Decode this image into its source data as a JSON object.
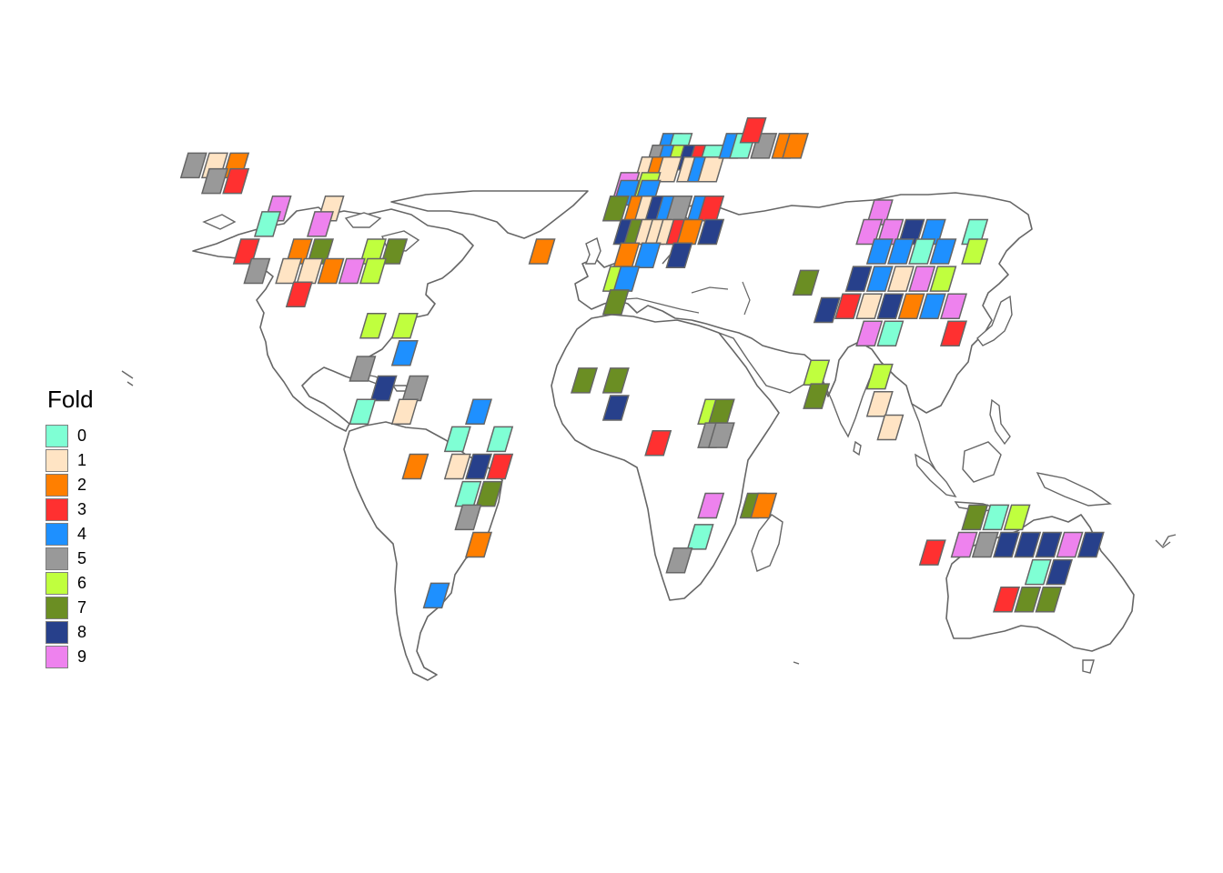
{
  "legend": {
    "title": "Fold",
    "items": [
      {
        "label": "0",
        "color": "#7fffd4"
      },
      {
        "label": "1",
        "color": "#ffe4c4"
      },
      {
        "label": "2",
        "color": "#ff7f00"
      },
      {
        "label": "3",
        "color": "#ff3030"
      },
      {
        "label": "4",
        "color": "#1e90ff"
      },
      {
        "label": "5",
        "color": "#999999"
      },
      {
        "label": "6",
        "color": "#c0ff3e"
      },
      {
        "label": "7",
        "color": "#6b8e23"
      },
      {
        "label": "8",
        "color": "#27408b"
      },
      {
        "label": "9",
        "color": "#ee82ee"
      }
    ]
  },
  "map": {
    "land_fill": "#ffffff",
    "coast_color": "#666666",
    "cell_border_color": "#666666",
    "cells": [
      {
        "lon": -168,
        "lat": 67,
        "fold": 5
      },
      {
        "lon": -160,
        "lat": 67,
        "fold": 1
      },
      {
        "lon": -152,
        "lat": 67,
        "fold": 2
      },
      {
        "lon": -160,
        "lat": 63,
        "fold": 5
      },
      {
        "lon": -152,
        "lat": 63,
        "fold": 3
      },
      {
        "lon": -136,
        "lat": 56,
        "fold": 9
      },
      {
        "lon": -140,
        "lat": 52,
        "fold": 0
      },
      {
        "lon": -116,
        "lat": 56,
        "fold": 1
      },
      {
        "lon": -120,
        "lat": 52,
        "fold": 9
      },
      {
        "lon": -148,
        "lat": 45,
        "fold": 3
      },
      {
        "lon": -128,
        "lat": 45,
        "fold": 2
      },
      {
        "lon": -120,
        "lat": 45,
        "fold": 7
      },
      {
        "lon": -100,
        "lat": 45,
        "fold": 6
      },
      {
        "lon": -92,
        "lat": 45,
        "fold": 7
      },
      {
        "lon": -144,
        "lat": 40,
        "fold": 5
      },
      {
        "lon": -132,
        "lat": 40,
        "fold": 1
      },
      {
        "lon": -124,
        "lat": 40,
        "fold": 1
      },
      {
        "lon": -116,
        "lat": 40,
        "fold": 2
      },
      {
        "lon": -108,
        "lat": 40,
        "fold": 9
      },
      {
        "lon": -100,
        "lat": 40,
        "fold": 6
      },
      {
        "lon": -128,
        "lat": 34,
        "fold": 3
      },
      {
        "lon": -100,
        "lat": 26,
        "fold": 6
      },
      {
        "lon": -88,
        "lat": 26,
        "fold": 6
      },
      {
        "lon": -88,
        "lat": 19,
        "fold": 4
      },
      {
        "lon": -104,
        "lat": 15,
        "fold": 5
      },
      {
        "lon": -96,
        "lat": 10,
        "fold": 8
      },
      {
        "lon": -84,
        "lat": 10,
        "fold": 5
      },
      {
        "lon": -104,
        "lat": 4,
        "fold": 0
      },
      {
        "lon": -88,
        "lat": 4,
        "fold": 1
      },
      {
        "lon": -60,
        "lat": 4,
        "fold": 4
      },
      {
        "lon": -68,
        "lat": -3,
        "fold": 0
      },
      {
        "lon": -52,
        "lat": -3,
        "fold": 0
      },
      {
        "lon": -68,
        "lat": -10,
        "fold": 1
      },
      {
        "lon": -60,
        "lat": -10,
        "fold": 8
      },
      {
        "lon": -52,
        "lat": -10,
        "fold": 3
      },
      {
        "lon": -84,
        "lat": -10,
        "fold": 2
      },
      {
        "lon": -64,
        "lat": -17,
        "fold": 0
      },
      {
        "lon": -56,
        "lat": -17,
        "fold": 7
      },
      {
        "lon": -64,
        "lat": -23,
        "fold": 5
      },
      {
        "lon": -60,
        "lat": -30,
        "fold": 2
      },
      {
        "lon": -76,
        "lat": -43,
        "fold": 4
      },
      {
        "lon": -36,
        "lat": 45,
        "fold": 2
      },
      {
        "lon": 12,
        "lat": 72,
        "fold": 4
      },
      {
        "lon": 16,
        "lat": 72,
        "fold": 0
      },
      {
        "lon": 8,
        "lat": 69,
        "fold": 5
      },
      {
        "lon": 12,
        "lat": 69,
        "fold": 4
      },
      {
        "lon": 16,
        "lat": 69,
        "fold": 6
      },
      {
        "lon": 20,
        "lat": 69,
        "fold": 8
      },
      {
        "lon": 24,
        "lat": 69,
        "fold": 3
      },
      {
        "lon": 28,
        "lat": 69,
        "fold": 0
      },
      {
        "lon": 4,
        "lat": 66,
        "fold": 1
      },
      {
        "lon": 8,
        "lat": 66,
        "fold": 2
      },
      {
        "lon": 12,
        "lat": 66,
        "fold": 1
      },
      {
        "lon": 20,
        "lat": 66,
        "fold": 1
      },
      {
        "lon": 24,
        "lat": 66,
        "fold": 4
      },
      {
        "lon": 28,
        "lat": 66,
        "fold": 1
      },
      {
        "lon": -4,
        "lat": 62,
        "fold": 9
      },
      {
        "lon": 4,
        "lat": 62,
        "fold": 6
      },
      {
        "lon": -4,
        "lat": 60,
        "fold": 4
      },
      {
        "lon": 4,
        "lat": 60,
        "fold": 4
      },
      {
        "lon": -8,
        "lat": 56,
        "fold": 7
      },
      {
        "lon": 0,
        "lat": 56,
        "fold": 2
      },
      {
        "lon": 4,
        "lat": 56,
        "fold": 1
      },
      {
        "lon": 8,
        "lat": 56,
        "fold": 8
      },
      {
        "lon": 12,
        "lat": 56,
        "fold": 4
      },
      {
        "lon": 16,
        "lat": 56,
        "fold": 5
      },
      {
        "lon": 24,
        "lat": 56,
        "fold": 4
      },
      {
        "lon": 28,
        "lat": 56,
        "fold": 3
      },
      {
        "lon": -4,
        "lat": 50,
        "fold": 8
      },
      {
        "lon": 0,
        "lat": 50,
        "fold": 7
      },
      {
        "lon": 4,
        "lat": 50,
        "fold": 1
      },
      {
        "lon": 8,
        "lat": 50,
        "fold": 1
      },
      {
        "lon": 12,
        "lat": 50,
        "fold": 1
      },
      {
        "lon": 16,
        "lat": 50,
        "fold": 3
      },
      {
        "lon": 20,
        "lat": 50,
        "fold": 2
      },
      {
        "lon": 28,
        "lat": 50,
        "fold": 8
      },
      {
        "lon": -4,
        "lat": 44,
        "fold": 2
      },
      {
        "lon": 4,
        "lat": 44,
        "fold": 4
      },
      {
        "lon": 16,
        "lat": 44,
        "fold": 8
      },
      {
        "lon": -8,
        "lat": 38,
        "fold": 6
      },
      {
        "lon": -4,
        "lat": 38,
        "fold": 4
      },
      {
        "lon": -8,
        "lat": 32,
        "fold": 7
      },
      {
        "lon": 36,
        "lat": 72,
        "fold": 4
      },
      {
        "lon": 40,
        "lat": 72,
        "fold": 0
      },
      {
        "lon": 48,
        "lat": 72,
        "fold": 5
      },
      {
        "lon": 44,
        "lat": 76,
        "fold": 3
      },
      {
        "lon": 56,
        "lat": 72,
        "fold": 2
      },
      {
        "lon": 60,
        "lat": 72,
        "fold": 2
      },
      {
        "lon": -20,
        "lat": 12,
        "fold": 7
      },
      {
        "lon": -8,
        "lat": 12,
        "fold": 7
      },
      {
        "lon": -8,
        "lat": 5,
        "fold": 8
      },
      {
        "lon": 8,
        "lat": -4,
        "fold": 3
      },
      {
        "lon": 28,
        "lat": 4,
        "fold": 6
      },
      {
        "lon": 32,
        "lat": 4,
        "fold": 7
      },
      {
        "lon": 28,
        "lat": -2,
        "fold": 5
      },
      {
        "lon": 32,
        "lat": -2,
        "fold": 5
      },
      {
        "lon": 28,
        "lat": -20,
        "fold": 9
      },
      {
        "lon": 24,
        "lat": -28,
        "fold": 0
      },
      {
        "lon": 16,
        "lat": -34,
        "fold": 5
      },
      {
        "lon": 44,
        "lat": -20,
        "fold": 7
      },
      {
        "lon": 48,
        "lat": -20,
        "fold": 2
      },
      {
        "lon": 64,
        "lat": 37,
        "fold": 7
      },
      {
        "lon": 72,
        "lat": 30,
        "fold": 8
      },
      {
        "lon": 68,
        "lat": 14,
        "fold": 6
      },
      {
        "lon": 68,
        "lat": 8,
        "fold": 7
      },
      {
        "lon": 92,
        "lat": 55,
        "fold": 9
      },
      {
        "lon": 88,
        "lat": 50,
        "fold": 9
      },
      {
        "lon": 96,
        "lat": 50,
        "fold": 9
      },
      {
        "lon": 104,
        "lat": 50,
        "fold": 8
      },
      {
        "lon": 112,
        "lat": 50,
        "fold": 4
      },
      {
        "lon": 128,
        "lat": 50,
        "fold": 0
      },
      {
        "lon": 92,
        "lat": 45,
        "fold": 4
      },
      {
        "lon": 100,
        "lat": 45,
        "fold": 4
      },
      {
        "lon": 108,
        "lat": 45,
        "fold": 0
      },
      {
        "lon": 116,
        "lat": 45,
        "fold": 4
      },
      {
        "lon": 128,
        "lat": 45,
        "fold": 6
      },
      {
        "lon": 84,
        "lat": 38,
        "fold": 8
      },
      {
        "lon": 92,
        "lat": 38,
        "fold": 4
      },
      {
        "lon": 100,
        "lat": 38,
        "fold": 1
      },
      {
        "lon": 108,
        "lat": 38,
        "fold": 9
      },
      {
        "lon": 116,
        "lat": 38,
        "fold": 6
      },
      {
        "lon": 80,
        "lat": 31,
        "fold": 3
      },
      {
        "lon": 88,
        "lat": 31,
        "fold": 1
      },
      {
        "lon": 96,
        "lat": 31,
        "fold": 8
      },
      {
        "lon": 104,
        "lat": 31,
        "fold": 2
      },
      {
        "lon": 112,
        "lat": 31,
        "fold": 4
      },
      {
        "lon": 120,
        "lat": 31,
        "fold": 9
      },
      {
        "lon": 88,
        "lat": 24,
        "fold": 9
      },
      {
        "lon": 96,
        "lat": 24,
        "fold": 0
      },
      {
        "lon": 120,
        "lat": 24,
        "fold": 3
      },
      {
        "lon": 92,
        "lat": 13,
        "fold": 6
      },
      {
        "lon": 92,
        "lat": 6,
        "fold": 1
      },
      {
        "lon": 96,
        "lat": 0,
        "fold": 1
      },
      {
        "lon": 112,
        "lat": -32,
        "fold": 3
      },
      {
        "lon": 128,
        "lat": -23,
        "fold": 7
      },
      {
        "lon": 136,
        "lat": -23,
        "fold": 0
      },
      {
        "lon": 144,
        "lat": -23,
        "fold": 6
      },
      {
        "lon": 124,
        "lat": -30,
        "fold": 9
      },
      {
        "lon": 132,
        "lat": -30,
        "fold": 5
      },
      {
        "lon": 140,
        "lat": -30,
        "fold": 8
      },
      {
        "lon": 148,
        "lat": -30,
        "fold": 8
      },
      {
        "lon": 156,
        "lat": -30,
        "fold": 8
      },
      {
        "lon": 164,
        "lat": -30,
        "fold": 9
      },
      {
        "lon": 172,
        "lat": -30,
        "fold": 8
      },
      {
        "lon": 152,
        "lat": -37,
        "fold": 0
      },
      {
        "lon": 160,
        "lat": -37,
        "fold": 8
      },
      {
        "lon": 140,
        "lat": -44,
        "fold": 3
      },
      {
        "lon": 148,
        "lat": -44,
        "fold": 7
      },
      {
        "lon": 156,
        "lat": -44,
        "fold": 7
      }
    ]
  }
}
